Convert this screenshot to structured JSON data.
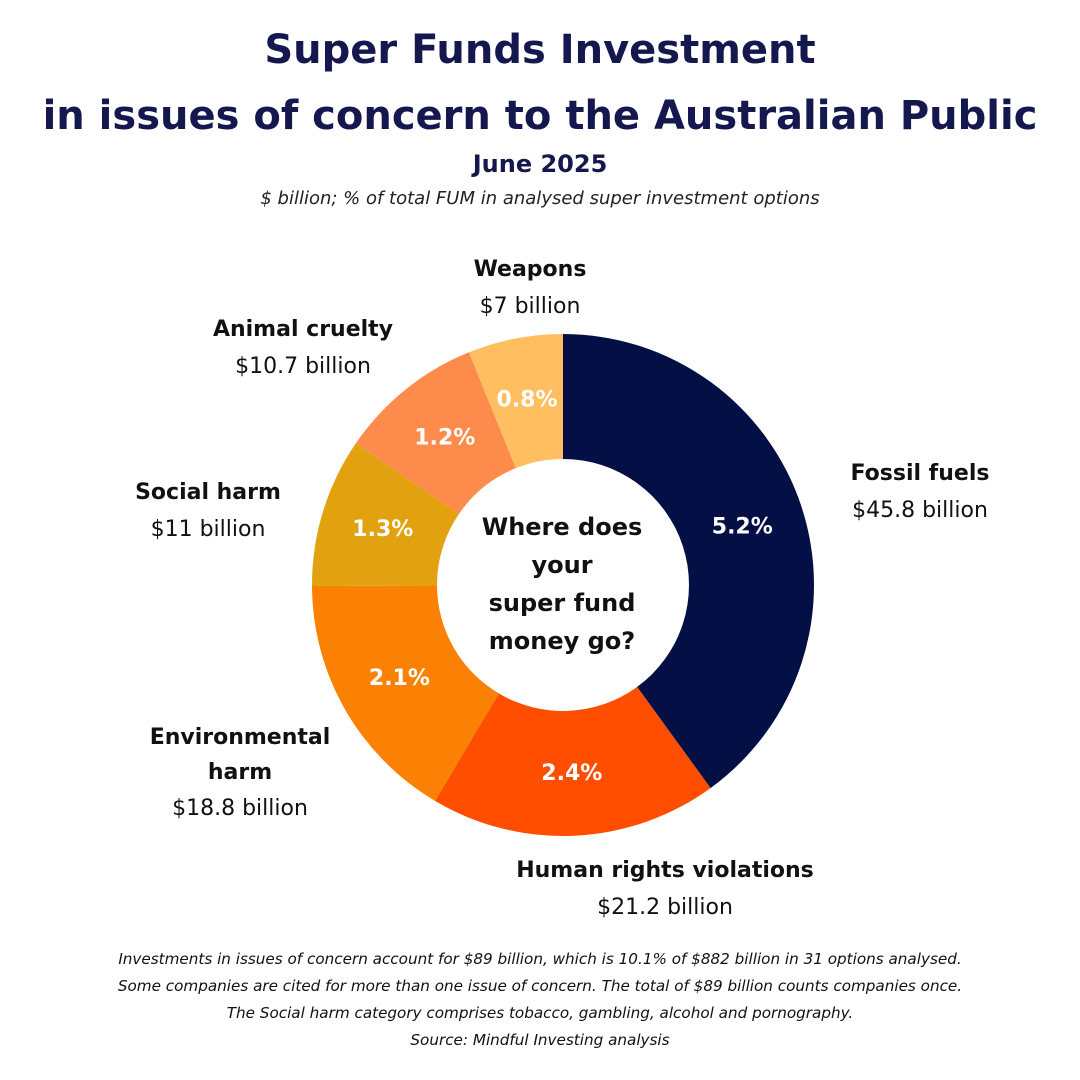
{
  "title_lines": [
    "Super Funds Investment",
    "in issues of concern to the Australian Public"
  ],
  "subtitle": "June 2025",
  "units_note": "$ billion; % of total FUM in analysed super investment options",
  "center_text": "Where does\nyour\nsuper fund\nmoney go?",
  "footnotes": [
    "Investments in issues of concern account for $89 billion, which is 10.1% of $882 billion in 31 options analysed.",
    "Some companies are cited for more than one issue of concern. The total of $89 billion counts companies once.",
    "The Social harm category comprises tobacco, gambling, alcohol and pornography.",
    "Source: Mindful Investing analysis"
  ],
  "chart_data": {
    "type": "pie",
    "variant": "donut",
    "categories": [
      "Fossil fuels",
      "Human rights violations",
      "Environmental harm",
      "Social harm",
      "Animal cruelty",
      "Weapons"
    ],
    "value_labels": [
      "$45.8 billion",
      "$21.2 billion",
      "$18.8 billion",
      "$11 billion",
      "$10.7 billion",
      "$7 billion"
    ],
    "values": [
      45.8,
      21.2,
      18.8,
      11,
      10.7,
      7
    ],
    "percent_labels": [
      "5.2%",
      "2.4%",
      "2.1%",
      "1.3%",
      "1.2%",
      "0.8%"
    ],
    "percents": [
      5.2,
      2.4,
      2.1,
      1.3,
      1.2,
      0.8
    ],
    "colors": [
      "#030f45",
      "#ff4e00",
      "#fa8103",
      "#e2a20f",
      "#fd8c4c",
      "#ffbe5f"
    ],
    "start": "12 o'clock",
    "direction": "clockwise",
    "legend": "none"
  }
}
